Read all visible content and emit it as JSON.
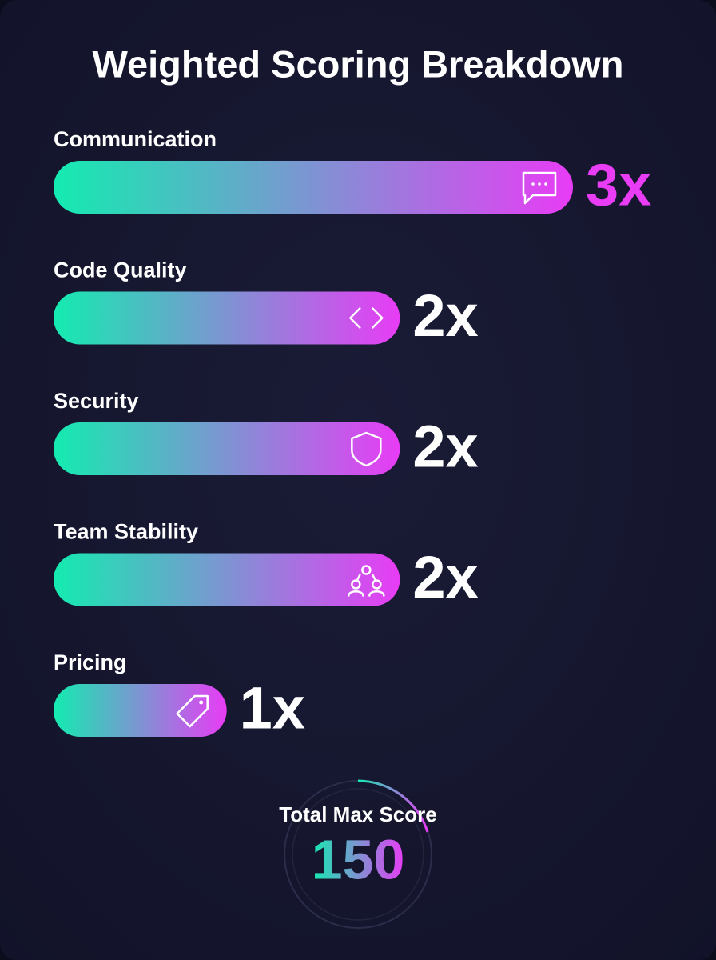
{
  "chart_data": {
    "type": "hbar",
    "title": "Weighted Scoring Breakdown",
    "categories": [
      "Communication",
      "Code Quality",
      "Security",
      "Team Stability",
      "Pricing"
    ],
    "values": [
      3,
      2,
      2,
      2,
      1
    ],
    "value_labels": [
      "3x",
      "2x",
      "2x",
      "2x",
      "1x"
    ],
    "colors": [
      "#14ebb0",
      "#e83cf5"
    ],
    "total_label": "Total Max Score",
    "total_value": "150"
  }
}
